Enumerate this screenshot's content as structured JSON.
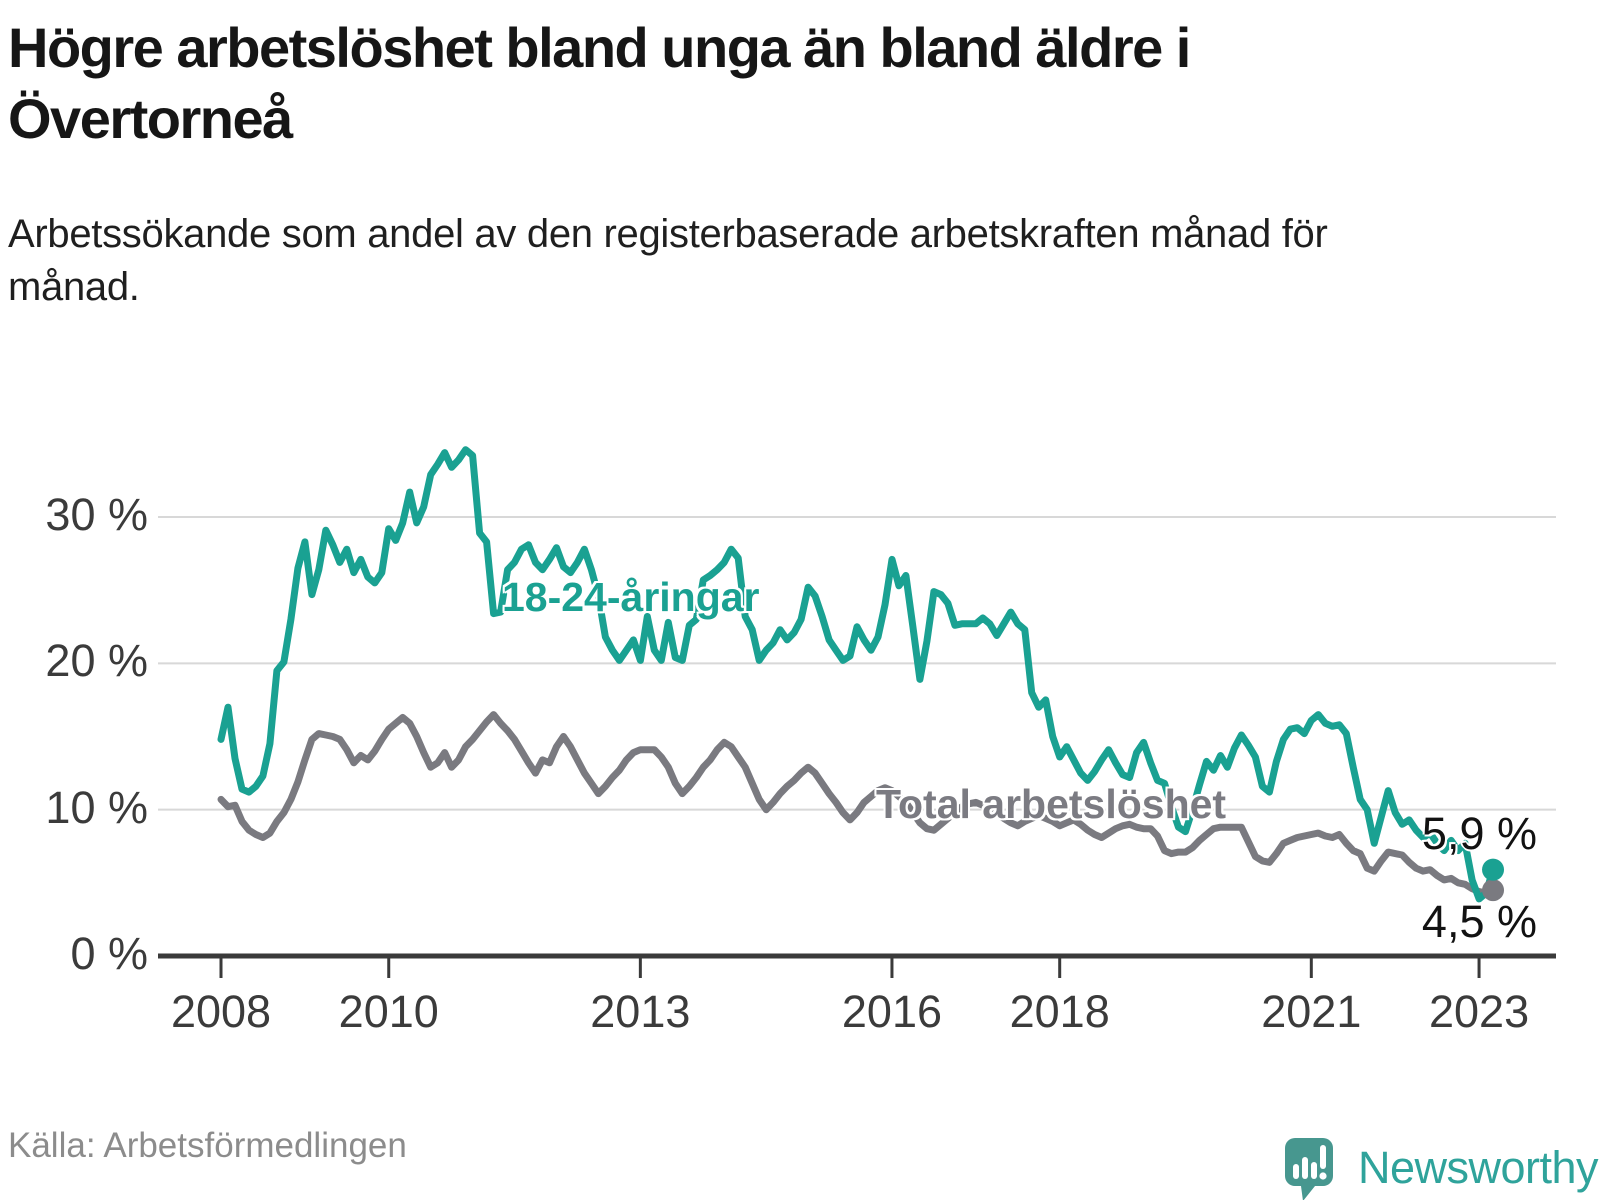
{
  "header": {
    "title": "Högre arbetslöshet bland unga än bland äldre i Övertorneå",
    "subtitle": "Arbetssökande som andel av den registerbaserade arbetskraften månad för månad."
  },
  "footer": {
    "source": "Källa: Arbetsförmedlingen",
    "brand": "Newsworthy"
  },
  "colors": {
    "young_line": "#1AA192",
    "total_line": "#7A7A80",
    "grid": "#d8d8d8",
    "axis": "#3a3a3a",
    "logo_background": "#47978F",
    "brand_text": "#2FA39B"
  },
  "chart_data": {
    "type": "line",
    "title": "Högre arbetslöshet bland unga än bland äldre i Övertorneå",
    "subtitle": "Arbetssökande som andel av den registerbaserade arbetskraften månad för månad.",
    "x_start": "2008-01",
    "x_end": "2023-03",
    "x_frequency": "monthly",
    "ylim": [
      0,
      36
    ],
    "grid": true,
    "y_ticks": [
      {
        "label": "0 %",
        "value": 0
      },
      {
        "label": "10 %",
        "value": 10
      },
      {
        "label": "20 %",
        "value": 20
      },
      {
        "label": "30 %",
        "value": 30
      }
    ],
    "x_ticks": [
      {
        "label": "2008",
        "year": 2008
      },
      {
        "label": "2010",
        "year": 2010
      },
      {
        "label": "2013",
        "year": 2013
      },
      {
        "label": "2016",
        "year": 2016
      },
      {
        "label": "2018",
        "year": 2018
      },
      {
        "label": "2021",
        "year": 2021
      },
      {
        "label": "2023",
        "year": 2023
      }
    ],
    "series": [
      {
        "name": "Total arbetslöshet",
        "color": "#7A7A80",
        "end_label": "4,5 %",
        "end_value": 4.5,
        "values": [
          10.7,
          10.2,
          10.3,
          9.2,
          8.6,
          8.3,
          8.1,
          8.4,
          9.2,
          9.8,
          10.7,
          11.9,
          13.4,
          14.8,
          15.2,
          15.1,
          15.0,
          14.8,
          14.1,
          13.2,
          13.7,
          13.4,
          14.0,
          14.8,
          15.5,
          15.9,
          16.3,
          15.9,
          15.0,
          13.9,
          12.9,
          13.2,
          13.9,
          12.9,
          13.4,
          14.3,
          14.8,
          15.4,
          16.0,
          16.5,
          15.9,
          15.4,
          14.8,
          14.0,
          13.2,
          12.5,
          13.4,
          13.2,
          14.3,
          15.0,
          14.3,
          13.4,
          12.5,
          11.8,
          11.1,
          11.6,
          12.2,
          12.7,
          13.4,
          13.9,
          14.1,
          14.1,
          14.1,
          13.6,
          12.9,
          11.8,
          11.1,
          11.6,
          12.2,
          12.9,
          13.4,
          14.1,
          14.6,
          14.3,
          13.6,
          12.9,
          11.8,
          10.7,
          10.0,
          10.5,
          11.1,
          11.6,
          12.0,
          12.5,
          12.9,
          12.5,
          11.8,
          11.1,
          10.5,
          9.8,
          9.3,
          9.8,
          10.5,
          10.9,
          11.3,
          11.5,
          11.3,
          10.9,
          10.5,
          9.8,
          9.1,
          8.7,
          8.6,
          9.0,
          9.4,
          9.8,
          10.2,
          10.4,
          10.5,
          10.3,
          10.0,
          9.7,
          9.4,
          9.1,
          8.9,
          9.2,
          9.4,
          9.6,
          9.4,
          9.2,
          8.9,
          9.1,
          9.3,
          9.0,
          8.6,
          8.3,
          8.1,
          8.4,
          8.7,
          8.9,
          9.0,
          8.8,
          8.7,
          8.7,
          8.2,
          7.2,
          7.0,
          7.1,
          7.1,
          7.4,
          7.9,
          8.3,
          8.7,
          8.8,
          8.8,
          8.8,
          8.8,
          7.8,
          6.8,
          6.5,
          6.4,
          7.0,
          7.7,
          7.9,
          8.1,
          8.2,
          8.3,
          8.4,
          8.2,
          8.1,
          8.3,
          7.7,
          7.2,
          7.0,
          6.0,
          5.8,
          6.5,
          7.1,
          7.0,
          6.9,
          6.4,
          6.0,
          5.8,
          5.9,
          5.5,
          5.2,
          5.3,
          5.0,
          4.9,
          4.6,
          4.4,
          4.3,
          4.5
        ]
      },
      {
        "name": "18-24-åringar",
        "color": "#1AA192",
        "end_label": "5,9 %",
        "end_value": 5.9,
        "values": [
          14.8,
          17.0,
          13.5,
          11.4,
          11.2,
          11.6,
          12.3,
          14.5,
          19.5,
          20.1,
          23.0,
          26.5,
          28.3,
          24.7,
          26.4,
          29.1,
          28.1,
          26.9,
          27.8,
          26.2,
          27.1,
          25.9,
          25.5,
          26.2,
          29.2,
          28.4,
          29.6,
          31.7,
          29.6,
          30.7,
          32.9,
          33.6,
          34.4,
          33.4,
          33.9,
          34.6,
          34.2,
          28.9,
          28.3,
          23.4,
          23.5,
          26.4,
          26.9,
          27.8,
          28.1,
          26.9,
          26.4,
          27.1,
          27.9,
          26.6,
          26.2,
          26.9,
          27.8,
          26.4,
          24.6,
          21.8,
          20.9,
          20.2,
          20.9,
          21.6,
          20.2,
          23.2,
          20.9,
          20.2,
          22.8,
          20.4,
          20.2,
          22.6,
          23.0,
          25.7,
          26.0,
          26.4,
          26.9,
          27.8,
          27.2,
          23.2,
          22.3,
          20.2,
          20.9,
          21.4,
          22.3,
          21.6,
          22.1,
          23.0,
          25.2,
          24.6,
          23.2,
          21.6,
          20.9,
          20.2,
          20.5,
          22.5,
          21.6,
          20.9,
          21.8,
          24.0,
          27.1,
          25.3,
          26.0,
          22.5,
          18.9,
          21.5,
          24.9,
          24.7,
          24.1,
          22.6,
          22.7,
          22.7,
          22.7,
          23.1,
          22.7,
          21.9,
          22.7,
          23.5,
          22.7,
          22.3,
          18.0,
          17.0,
          17.5,
          15.0,
          13.6,
          14.3,
          13.4,
          12.5,
          12.0,
          12.6,
          13.4,
          14.1,
          13.2,
          12.4,
          12.2,
          13.9,
          14.6,
          13.2,
          12.0,
          11.8,
          10.2,
          8.8,
          8.5,
          10.0,
          11.7,
          13.3,
          12.7,
          13.7,
          12.9,
          14.2,
          15.1,
          14.4,
          13.6,
          11.6,
          11.2,
          13.3,
          14.8,
          15.5,
          15.6,
          15.2,
          16.1,
          16.5,
          15.9,
          15.7,
          15.8,
          15.2,
          12.9,
          10.7,
          10.0,
          7.7,
          9.5,
          11.3,
          9.8,
          9.0,
          9.3,
          8.6,
          8.1,
          8.4,
          7.7,
          7.2,
          7.9,
          7.2,
          7.7,
          5.2,
          3.9,
          4.3,
          5.9
        ]
      }
    ]
  }
}
